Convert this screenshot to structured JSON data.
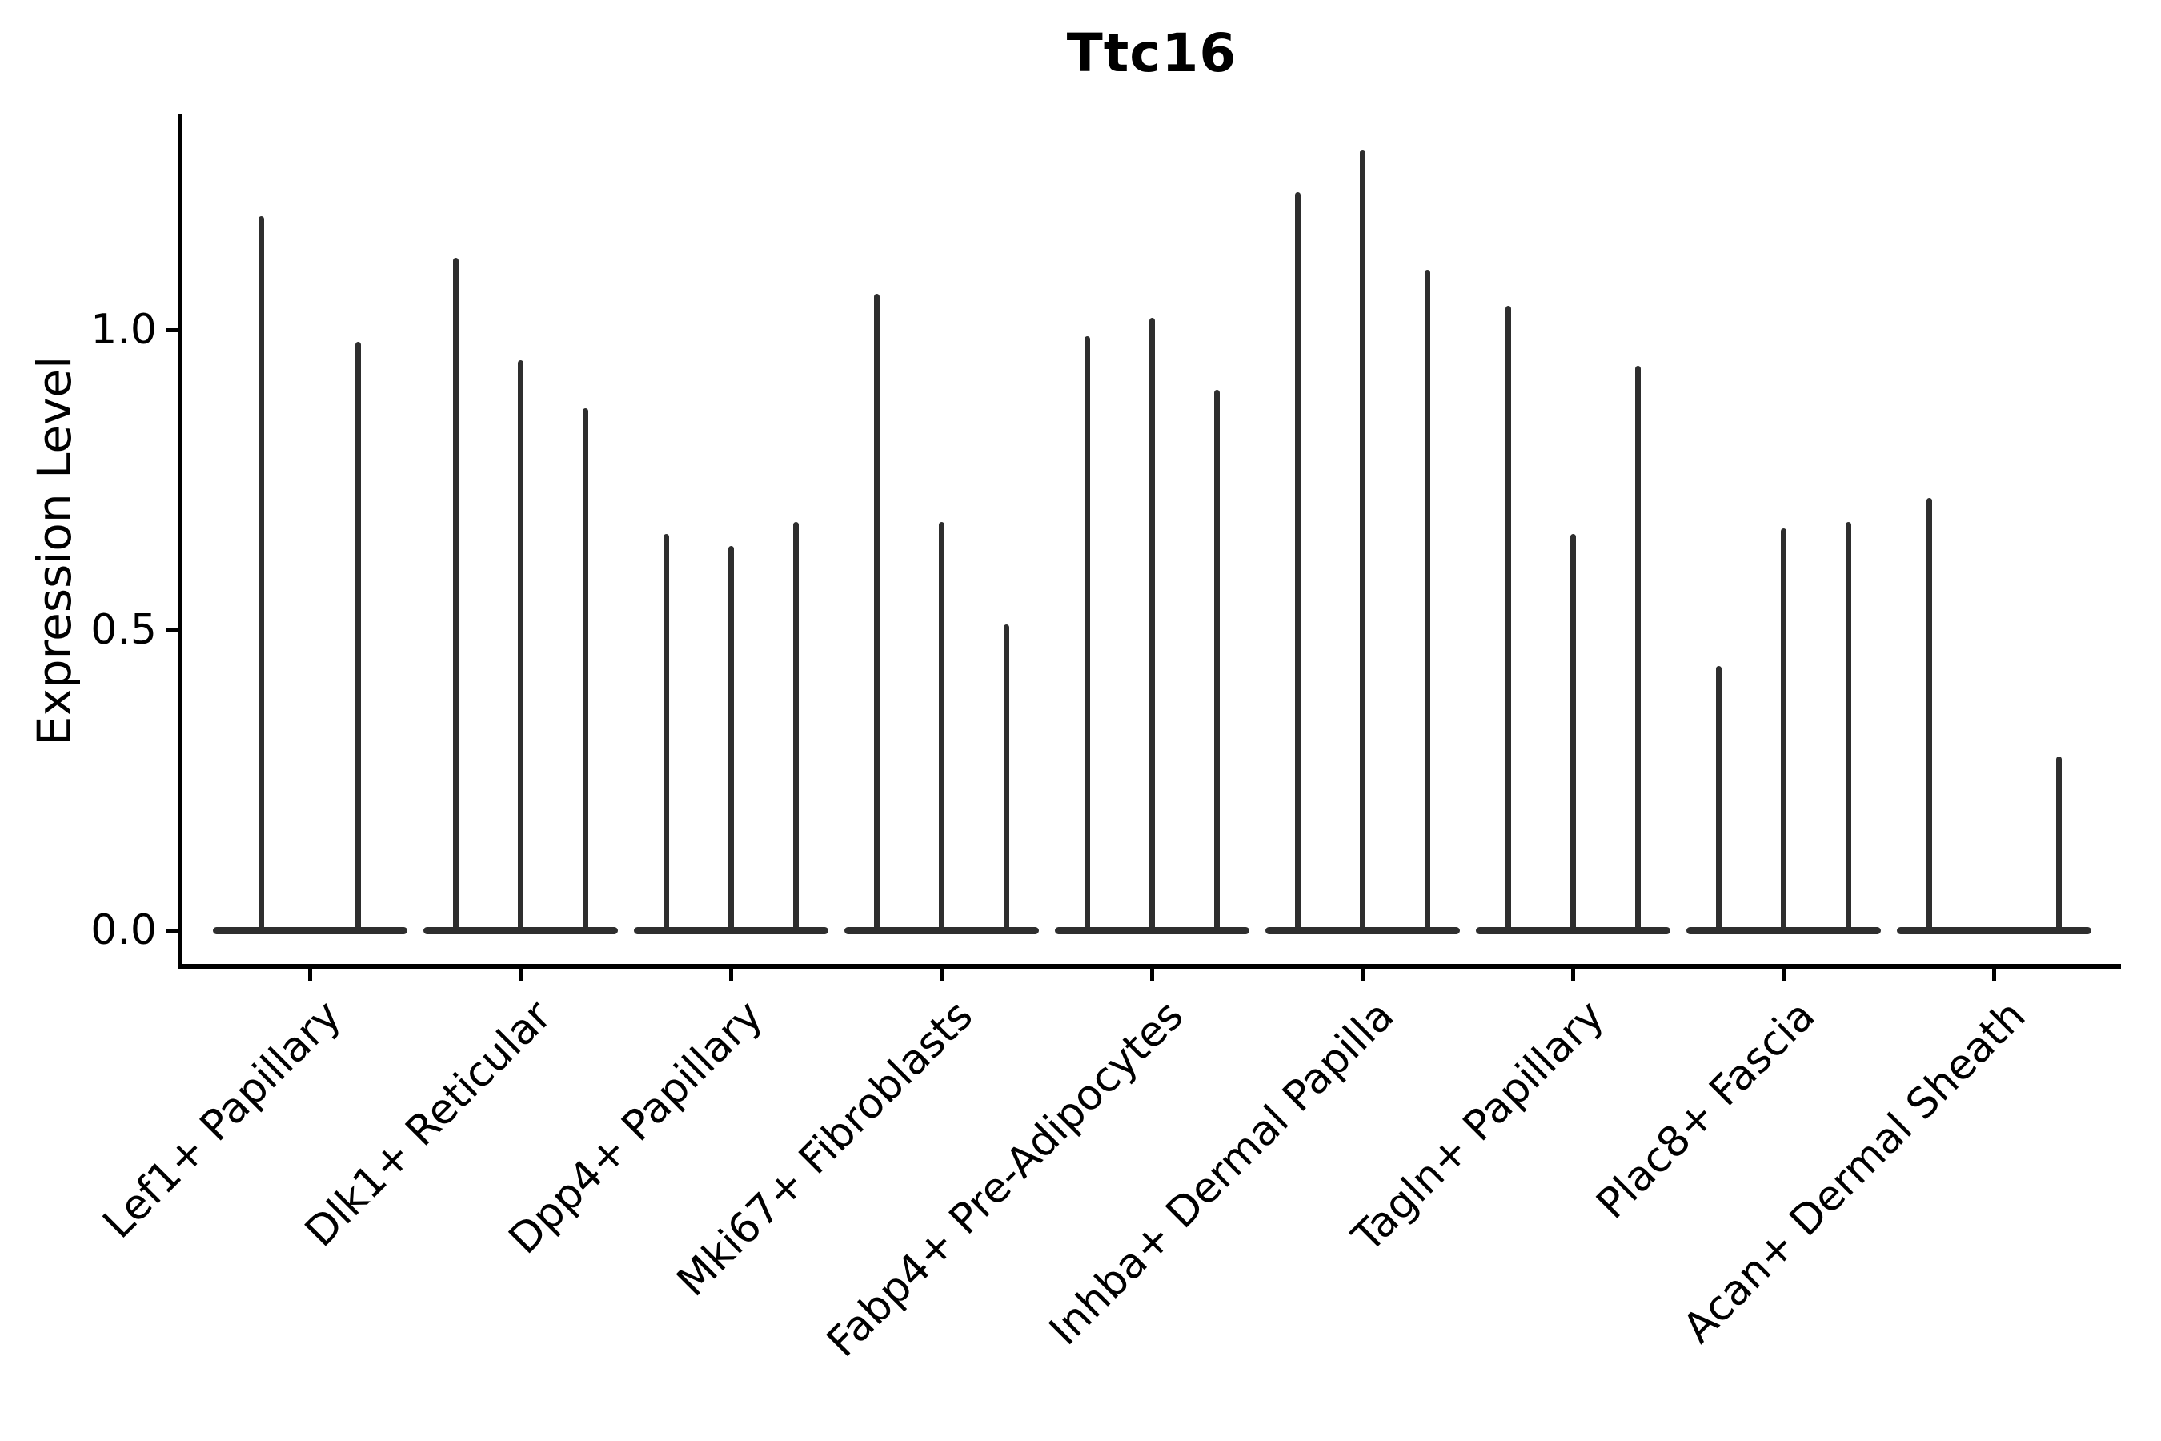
{
  "title": "Ttc16",
  "y_axis": {
    "label": "Expression Level",
    "tick_labels": [
      "0.0",
      "0.5",
      "1.0"
    ],
    "tick_values": [
      0.0,
      0.5,
      1.0
    ]
  },
  "chart_data": {
    "type": "violin",
    "title": "Ttc16",
    "xlabel": "",
    "ylabel": "Expression Level",
    "ylim": [
      0,
      1.36
    ],
    "yticks": [
      0.0,
      0.5,
      1.0
    ],
    "ytick_labels": [
      "0.0",
      "0.5",
      "1.0"
    ],
    "grid": false,
    "legend_position": "none",
    "x_tick_rotation_deg": 45,
    "style_note": "Seurat-style violin plot; each cluster shows narrow spike-shaped violins rising from a flat density lens at expression 0",
    "categories": [
      "Lef1+ Papillary",
      "Dlk1+ Reticular",
      "Dpp4+ Papillary",
      "Mki67+ Fibroblasts",
      "Fabp4+ Pre-Adipocytes",
      "Inhba+ Dermal Papilla",
      "Tagln+ Papillary",
      "Plac8+ Fascia",
      "Acan+ Dermal Sheath"
    ],
    "groups": [
      {
        "category": "Lef1+ Papillary",
        "violin_max_expression": [
          1.19,
          0.98
        ]
      },
      {
        "category": "Dlk1+ Reticular",
        "violin_max_expression": [
          1.12,
          0.95,
          0.87
        ]
      },
      {
        "category": "Dpp4+ Papillary",
        "violin_max_expression": [
          0.66,
          0.64,
          0.68
        ]
      },
      {
        "category": "Mki67+ Fibroblasts",
        "violin_max_expression": [
          1.06,
          0.68,
          0.51
        ]
      },
      {
        "category": "Fabp4+ Pre-Adipocytes",
        "violin_max_expression": [
          0.99,
          1.02,
          0.9
        ]
      },
      {
        "category": "Inhba+ Dermal Papilla",
        "violin_max_expression": [
          1.23,
          1.3,
          1.1
        ]
      },
      {
        "category": "Tagln+ Papillary",
        "violin_max_expression": [
          1.04,
          0.66,
          0.94
        ]
      },
      {
        "category": "Plac8+ Fascia",
        "violin_max_expression": [
          0.44,
          0.67,
          0.68
        ]
      },
      {
        "category": "Acan+ Dermal Sheath",
        "violin_max_expression": [
          0.72,
          0.0,
          0.29
        ]
      }
    ],
    "colors": {
      "violin": "#2e2e2e",
      "axis": "#000000",
      "text": "#000000",
      "background": "#ffffff"
    }
  }
}
